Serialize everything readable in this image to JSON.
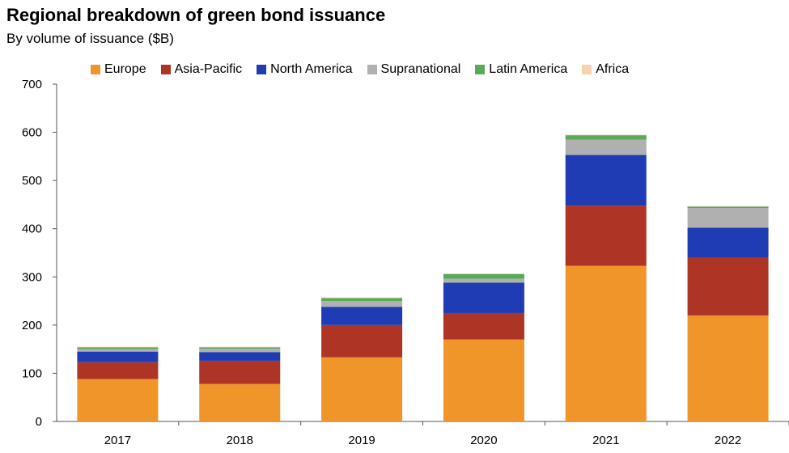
{
  "title": "Regional breakdown of green bond issuance",
  "subtitle": "By volume of issuance ($B)",
  "chart_data": {
    "type": "bar",
    "stacked": true,
    "categories": [
      "2017",
      "2018",
      "2019",
      "2020",
      "2021",
      "2022"
    ],
    "ylim": [
      0,
      700
    ],
    "yticks": [
      0,
      100,
      200,
      300,
      400,
      500,
      600,
      700
    ],
    "grid": false,
    "legend_position": "top",
    "series": [
      {
        "name": "Europe",
        "color": "#f0952a",
        "values": [
          88,
          78,
          133,
          170,
          323,
          220
        ]
      },
      {
        "name": "Asia-Pacific",
        "color": "#ae3526",
        "values": [
          35,
          48,
          67,
          55,
          125,
          120
        ]
      },
      {
        "name": "North America",
        "color": "#1f3cb5",
        "values": [
          22,
          18,
          38,
          63,
          105,
          62
        ]
      },
      {
        "name": "Supranational",
        "color": "#b0b0b0",
        "values": [
          5,
          7,
          12,
          8,
          32,
          41
        ]
      },
      {
        "name": "Latin America",
        "color": "#5aaa5a",
        "values": [
          4,
          3,
          6,
          10,
          9,
          3
        ]
      },
      {
        "name": "Africa",
        "color": "#f7d3b0",
        "values": [
          1,
          1,
          1,
          1,
          1,
          1
        ]
      }
    ]
  }
}
